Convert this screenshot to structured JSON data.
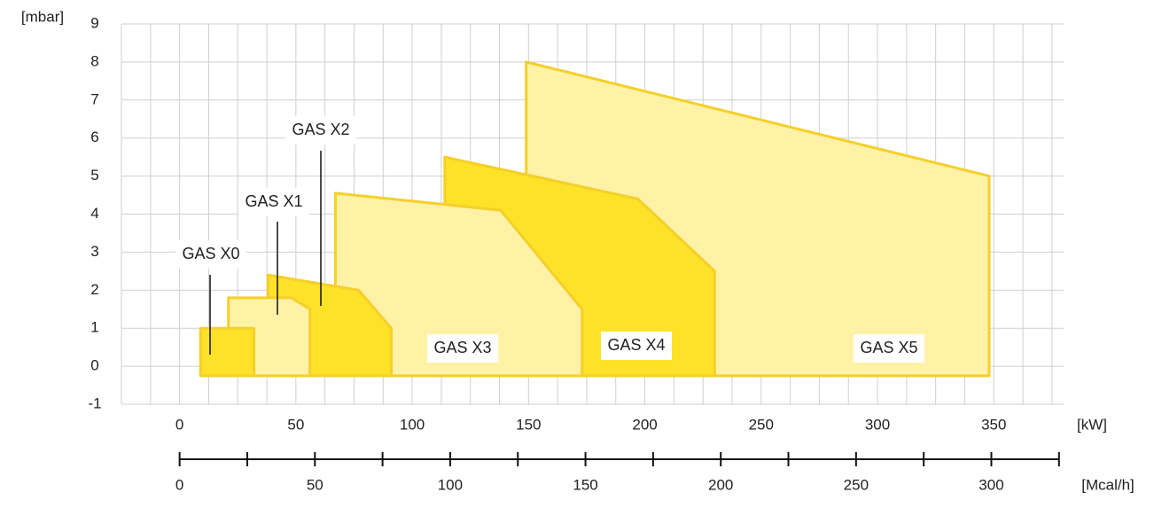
{
  "chart_data": {
    "type": "polygon",
    "ylabel": "[mbar]",
    "xlabel": "[kW]",
    "x2label": "[Mcal/h]",
    "xlim": [
      -25,
      380
    ],
    "ylim": [
      -1,
      9
    ],
    "xticks": [
      0,
      50,
      100,
      150,
      200,
      250,
      300,
      350
    ],
    "xminorticks": [
      -25,
      -12.5,
      12.5,
      25,
      37.5,
      62.5,
      75,
      87.5,
      112.5,
      125,
      137.5,
      162.5,
      175,
      187.5,
      212.5,
      225,
      237.5,
      262.5,
      275,
      287.5,
      312.5,
      325,
      337.5,
      362.5,
      375
    ],
    "yticks": [
      -1,
      0,
      1,
      2,
      3,
      4,
      5,
      6,
      7,
      8,
      9
    ],
    "x2lim": [
      -21.5,
      326.7
    ],
    "x2ticks": [
      0,
      50,
      100,
      150,
      200,
      250,
      300
    ],
    "x2minorticks": [
      25,
      75,
      125,
      175,
      225,
      275,
      325
    ],
    "grid": true,
    "series": [
      {
        "name": "GAS X0",
        "color": "#fde227",
        "x": [
          9,
          9,
          32,
          32
        ],
        "y": [
          -0.25,
          1,
          1,
          -0.25
        ]
      },
      {
        "name": "GAS X1",
        "color": "#fff2a6",
        "x": [
          21,
          21,
          48,
          56,
          56
        ],
        "y": [
          -0.25,
          1.8,
          1.8,
          1.5,
          -0.25
        ]
      },
      {
        "name": "GAS X2",
        "color": "#fde227",
        "x": [
          38,
          38,
          77,
          91,
          91
        ],
        "y": [
          -0.25,
          2.4,
          2.0,
          1.0,
          -0.25
        ]
      },
      {
        "name": "GAS X3",
        "color": "#fff2a6",
        "x": [
          67,
          67,
          138,
          173,
          173
        ],
        "y": [
          -0.25,
          4.55,
          4.1,
          1.5,
          -0.25
        ]
      },
      {
        "name": "GAS X4",
        "color": "#fde227",
        "x": [
          114,
          114,
          197,
          230,
          230
        ],
        "y": [
          -0.25,
          5.5,
          4.4,
          2.5,
          -0.25
        ]
      },
      {
        "name": "GAS X5",
        "color": "#fff2a6",
        "x": [
          149,
          149,
          348,
          348
        ],
        "y": [
          -0.25,
          8.0,
          5.0,
          -0.25
        ]
      }
    ]
  }
}
